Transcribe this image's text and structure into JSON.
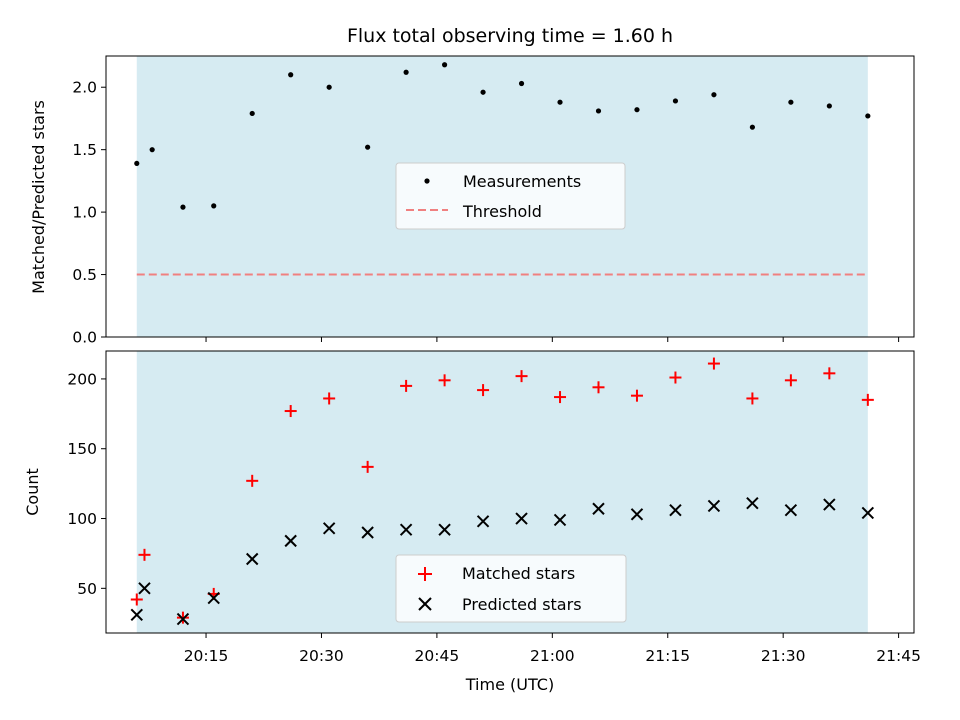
{
  "chart_data": [
    {
      "type": "scatter",
      "title": "Flux total observing time = 1.60 h",
      "xlabel": "",
      "ylabel": "Matched/Predicted stars",
      "ylim": [
        0,
        2.25
      ],
      "yticks": [
        "0.0",
        "0.5",
        "1.0",
        "1.5",
        "2.0"
      ],
      "grid": false,
      "legend_position": "center",
      "shaded_span": {
        "start": "20:06",
        "end": "21:41",
        "color": "#add8e6"
      },
      "threshold": 0.5,
      "series": [
        {
          "name": "Measurements",
          "color": "#000000",
          "marker": "dot",
          "x": [
            "20:06",
            "20:08",
            "20:12",
            "20:16",
            "20:21",
            "20:26",
            "20:31",
            "20:36",
            "20:41",
            "20:46",
            "20:51",
            "20:56",
            "21:01",
            "21:06",
            "21:11",
            "21:16",
            "21:21",
            "21:26",
            "21:31",
            "21:36",
            "21:41"
          ],
          "y": [
            1.39,
            1.5,
            1.04,
            1.05,
            1.79,
            2.1,
            2.0,
            1.52,
            2.12,
            2.18,
            1.96,
            2.03,
            1.88,
            1.81,
            1.82,
            1.89,
            1.94,
            1.68,
            1.88,
            1.85,
            1.77
          ]
        },
        {
          "name": "Threshold",
          "color": "#f08080",
          "style": "dashed",
          "x": [
            "20:06",
            "21:41"
          ],
          "y": [
            0.5,
            0.5
          ]
        }
      ]
    },
    {
      "type": "scatter",
      "title": "",
      "xlabel": "Time (UTC)",
      "ylabel": "Count",
      "ylim": [
        18,
        220
      ],
      "yticks": [
        "50",
        "100",
        "150",
        "200"
      ],
      "xlim": [
        "20:02",
        "21:47"
      ],
      "xticks": [
        "20:15",
        "20:30",
        "20:45",
        "21:00",
        "21:15",
        "21:30",
        "21:45"
      ],
      "grid": false,
      "legend_position": "bottom-center",
      "shaded_span": {
        "start": "20:06",
        "end": "21:41",
        "color": "#add8e6"
      },
      "series": [
        {
          "name": "Matched stars",
          "color": "#ff0000",
          "marker": "plus",
          "x": [
            "20:06",
            "20:07",
            "20:12",
            "20:16",
            "20:21",
            "20:26",
            "20:31",
            "20:36",
            "20:41",
            "20:46",
            "20:51",
            "20:56",
            "21:01",
            "21:06",
            "21:11",
            "21:16",
            "21:21",
            "21:26",
            "21:31",
            "21:36",
            "21:41"
          ],
          "y": [
            42,
            74,
            29,
            46,
            127,
            177,
            186,
            137,
            195,
            199,
            192,
            202,
            187,
            194,
            188,
            201,
            211,
            186,
            199,
            204,
            185
          ]
        },
        {
          "name": "Predicted stars",
          "color": "#000000",
          "marker": "x",
          "x": [
            "20:06",
            "20:07",
            "20:12",
            "20:16",
            "20:21",
            "20:26",
            "20:31",
            "20:36",
            "20:41",
            "20:46",
            "20:51",
            "20:56",
            "21:01",
            "21:06",
            "21:11",
            "21:16",
            "21:21",
            "21:26",
            "21:31",
            "21:36",
            "21:41"
          ],
          "y": [
            31,
            50,
            28,
            43,
            71,
            84,
            93,
            90,
            92,
            92,
            98,
            100,
            99,
            107,
            103,
            106,
            109,
            111,
            106,
            110,
            104
          ]
        }
      ]
    }
  ]
}
